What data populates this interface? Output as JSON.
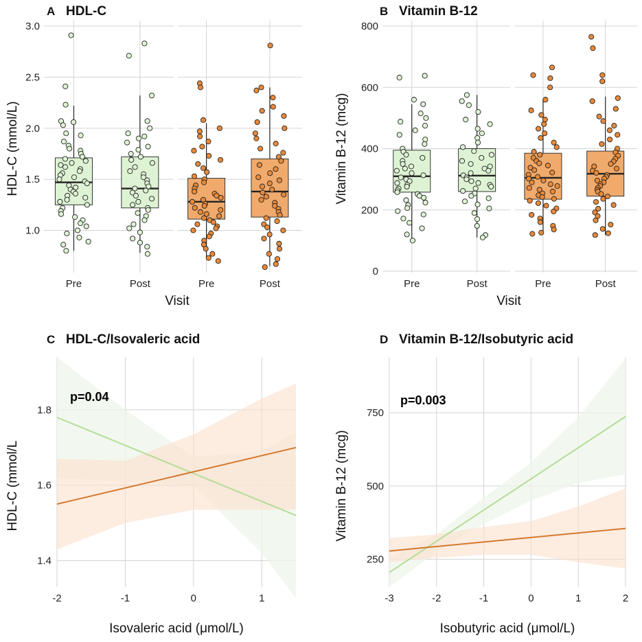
{
  "colors": {
    "green_fill": "#def3d4",
    "green_line": "#b5dc98",
    "orange_fill": "#f0aa6c",
    "orange_line": "#d4782e",
    "orange_point": "#e98a3a",
    "green_band": "#eef6ea",
    "orange_band": "#fbe0cc",
    "grid": "#d3d3d3"
  },
  "chart_data": [
    {
      "id": "A",
      "type": "box",
      "letter": "A",
      "title": "HDL-C",
      "xlabel": "Visit",
      "ylabel": "HDL-C (mmol/L)",
      "ylim": [
        0.6,
        3.0
      ],
      "yticks": [
        1.0,
        1.5,
        2.0,
        2.5,
        3.0
      ],
      "ytick_labels": [
        "1.0",
        "1.5",
        "2.0",
        "2.5",
        "3.0"
      ],
      "facets": [
        {
          "group": "green",
          "categories": [
            "Pre",
            "Post"
          ],
          "boxes": [
            {
              "min": 0.8,
              "q1": 1.25,
              "median": 1.47,
              "q3": 1.71,
              "max": 2.22
            },
            {
              "min": 0.78,
              "q1": 1.22,
              "median": 1.41,
              "q3": 1.72,
              "max": 2.32
            }
          ],
          "points": [
            [
              2.91,
              2.41,
              2.23,
              2.07,
              2.06,
              2.03,
              1.95,
              1.93,
              1.87,
              1.83,
              1.8,
              1.78,
              1.75,
              1.72,
              1.7,
              1.68,
              1.66,
              1.64,
              1.62,
              1.6,
              1.58,
              1.56,
              1.54,
              1.52,
              1.5,
              1.48,
              1.46,
              1.44,
              1.42,
              1.4,
              1.38,
              1.36,
              1.34,
              1.32,
              1.3,
              1.28,
              1.25,
              1.22,
              1.19,
              1.16,
              1.13,
              1.1,
              1.07,
              1.04,
              1.0,
              0.97,
              0.93,
              0.89,
              0.86,
              0.8
            ],
            [
              2.83,
              2.71,
              2.32,
              2.07,
              2.0,
              1.95,
              1.92,
              1.9,
              1.86,
              1.82,
              1.79,
              1.75,
              1.72,
              1.69,
              1.66,
              1.62,
              1.58,
              1.55,
              1.52,
              1.49,
              1.46,
              1.43,
              1.41,
              1.39,
              1.37,
              1.34,
              1.31,
              1.28,
              1.25,
              1.22,
              1.2,
              1.17,
              1.14,
              1.1,
              1.06,
              1.02,
              0.98,
              0.92,
              0.88,
              0.84,
              0.77
            ]
          ]
        },
        {
          "group": "orange",
          "categories": [
            "Pre",
            "Post"
          ],
          "boxes": [
            {
              "min": 0.73,
              "q1": 1.11,
              "median": 1.28,
              "q3": 1.51,
              "max": 2.05
            },
            {
              "min": 0.65,
              "q1": 1.13,
              "median": 1.38,
              "q3": 1.7,
              "max": 2.4
            }
          ],
          "points": [
            [
              2.44,
              2.4,
              2.08,
              2.0,
              1.97,
              1.92,
              1.87,
              1.82,
              1.78,
              1.73,
              1.69,
              1.65,
              1.61,
              1.57,
              1.53,
              1.5,
              1.47,
              1.44,
              1.41,
              1.38,
              1.36,
              1.34,
              1.32,
              1.3,
              1.28,
              1.26,
              1.24,
              1.22,
              1.2,
              1.18,
              1.16,
              1.14,
              1.12,
              1.1,
              1.08,
              1.06,
              1.04,
              1.02,
              1.0,
              0.97,
              0.94,
              0.9,
              0.86,
              0.82,
              0.77,
              0.73,
              0.7
            ],
            [
              2.81,
              2.4,
              2.37,
              2.3,
              2.21,
              2.17,
              2.12,
              2.06,
              2.0,
              1.95,
              1.9,
              1.85,
              1.8,
              1.76,
              1.72,
              1.68,
              1.64,
              1.6,
              1.56,
              1.52,
              1.49,
              1.46,
              1.43,
              1.4,
              1.37,
              1.35,
              1.33,
              1.3,
              1.27,
              1.24,
              1.21,
              1.18,
              1.15,
              1.12,
              1.09,
              1.06,
              1.03,
              1.0,
              0.96,
              0.92,
              0.87,
              0.82,
              0.77,
              0.72,
              0.67,
              0.64
            ]
          ]
        }
      ]
    },
    {
      "id": "B",
      "type": "box",
      "letter": "B",
      "title": "Vitamin B-12",
      "xlabel": "Visit",
      "ylabel": "Vitamin B-12 (mcg)",
      "ylim": [
        0,
        800
      ],
      "yticks": [
        0,
        200,
        400,
        600,
        800
      ],
      "ytick_labels": [
        "0",
        "200",
        "400",
        "600",
        "800"
      ],
      "facets": [
        {
          "group": "green",
          "categories": [
            "Pre",
            "Post"
          ],
          "boxes": [
            {
              "min": 100,
              "q1": 258,
              "median": 310,
              "q3": 395,
              "max": 545
            },
            {
              "min": 110,
              "q1": 260,
              "median": 312,
              "q3": 400,
              "max": 575
            }
          ],
          "points": [
            [
              638,
              632,
              560,
              545,
              515,
              500,
              488,
              475,
              460,
              445,
              430,
              415,
              400,
              390,
              380,
              370,
              360,
              350,
              342,
              335,
              328,
              320,
              313,
              306,
              300,
              294,
              288,
              282,
              276,
              270,
              264,
              258,
              252,
              246,
              240,
              232,
              224,
              216,
              206,
              196,
              185,
              172,
              158,
              140,
              120,
              100
            ],
            [
              575,
              555,
              542,
              520,
              495,
              480,
              465,
              450,
              435,
              420,
              405,
              392,
              380,
              370,
              360,
              350,
              342,
              335,
              328,
              320,
              313,
              306,
              300,
              294,
              288,
              282,
              276,
              270,
              262,
              254,
              246,
              238,
              228,
              218,
              205,
              190,
              170,
              148,
              118,
              110
            ]
          ]
        },
        {
          "group": "orange",
          "categories": [
            "Pre",
            "Post"
          ],
          "boxes": [
            {
              "min": 130,
              "q1": 235,
              "median": 305,
              "q3": 385,
              "max": 560
            },
            {
              "min": 118,
              "q1": 245,
              "median": 318,
              "q3": 392,
              "max": 570
            }
          ],
          "points": [
            [
              665,
              640,
              630,
              600,
              560,
              525,
              510,
              495,
              480,
              465,
              450,
              435,
              420,
              405,
              390,
              380,
              370,
              360,
              352,
              345,
              338,
              330,
              322,
              315,
              308,
              302,
              296,
              290,
              284,
              278,
              272,
              266,
              260,
              254,
              248,
              242,
              236,
              230,
              222,
              214,
              205,
              195,
              184,
              172,
              160,
              148,
              136,
              126,
              122
            ],
            [
              765,
              728,
              640,
              620,
              565,
              555,
              530,
              505,
              490,
              475,
              460,
              445,
              430,
              415,
              400,
              388,
              377,
              367,
              358,
              350,
              342,
              335,
              328,
              321,
              314,
              308,
              302,
              296,
              290,
              284,
              278,
              272,
              266,
              260,
              252,
              244,
              236,
              226,
              216,
              204,
              192,
              180,
              166,
              152,
              138,
              124,
              118
            ]
          ]
        }
      ]
    },
    {
      "id": "C",
      "type": "line",
      "letter": "C",
      "title": "HDL-C/Isovaleric acid",
      "annotation": "p=0.04",
      "xlabel": "Isovaleric acid (μmol/L)",
      "ylabel": "HDL-C (mmol/L",
      "xlim": [
        -2,
        1.5
      ],
      "ylim": [
        1.33,
        1.94
      ],
      "xticks": [
        -2,
        -1,
        0,
        1
      ],
      "xtick_labels": [
        "-2",
        "-1",
        "0",
        "1"
      ],
      "yticks": [
        1.4,
        1.6,
        1.8
      ],
      "ytick_labels": [
        "1.4",
        "1.6",
        "1.8"
      ],
      "series": [
        {
          "name": "green",
          "x": [
            -2,
            1.5
          ],
          "y": [
            1.78,
            1.52
          ],
          "band_x": [
            -2,
            -1,
            0,
            1,
            1.5
          ],
          "band_lo": [
            1.62,
            1.61,
            1.6,
            1.42,
            1.3
          ],
          "band_hi": [
            1.94,
            1.8,
            1.675,
            1.69,
            1.74
          ]
        },
        {
          "name": "orange",
          "x": [
            -2,
            1.5
          ],
          "y": [
            1.55,
            1.7
          ],
          "band_x": [
            -2,
            -1,
            0,
            1,
            1.5
          ],
          "band_lo": [
            1.43,
            1.5,
            1.535,
            1.535,
            1.535
          ],
          "band_hi": [
            1.67,
            1.665,
            1.735,
            1.83,
            1.87
          ]
        }
      ]
    },
    {
      "id": "D",
      "type": "line",
      "letter": "D",
      "title": "Vitamin B-12/Isobutyric acid",
      "annotation": "p=0.003",
      "xlabel": "Isobutyric acid (μmol/L)",
      "ylabel": "Vitamin B-12 (mcg)",
      "xlim": [
        -3,
        2
      ],
      "ylim": [
        155,
        940
      ],
      "xticks": [
        -3,
        -2,
        -1,
        0,
        1,
        2
      ],
      "xtick_labels": [
        "-3",
        "-2",
        "-1",
        "0",
        "1",
        "2"
      ],
      "yticks": [
        250,
        500,
        750
      ],
      "ytick_labels": [
        "250",
        "500",
        "750"
      ],
      "series": [
        {
          "name": "green",
          "x": [
            -3,
            2
          ],
          "y": [
            205,
            737
          ],
          "band_x": [
            -3,
            -2,
            -1,
            0,
            1,
            2
          ],
          "band_lo": [
            155,
            275,
            370,
            450,
            510,
            540
          ],
          "band_hi": [
            255,
            335,
            460,
            580,
            735,
            935
          ]
        },
        {
          "name": "orange",
          "x": [
            -3,
            2
          ],
          "y": [
            278,
            355
          ],
          "band_x": [
            -3,
            -2,
            -1,
            0,
            1,
            2
          ],
          "band_lo": [
            240,
            255,
            265,
            265,
            240,
            218
          ],
          "band_hi": [
            322,
            335,
            360,
            380,
            430,
            492
          ]
        }
      ]
    }
  ]
}
